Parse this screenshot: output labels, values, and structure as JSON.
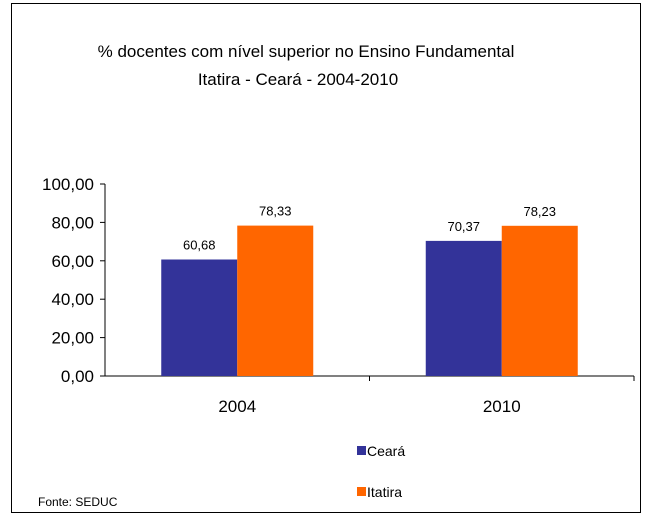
{
  "chart_data": {
    "type": "bar",
    "title": "% docentes com nível  superior no Ensino Fundamental",
    "subtitle": "Itatira -  Ceará - 2004-2010",
    "categories": [
      "2004",
      "2010"
    ],
    "series": [
      {
        "name": "Ceará",
        "values": [
          60.68,
          70.37
        ],
        "labels": [
          "60,68",
          "70,37"
        ],
        "color": "#333399"
      },
      {
        "name": "Itatira",
        "values": [
          78.33,
          78.23
        ],
        "labels": [
          "78,33",
          "78,23"
        ],
        "color": "#FF6600"
      }
    ],
    "ylim": [
      0,
      100
    ],
    "yticks": [
      0,
      20,
      40,
      60,
      80,
      100
    ],
    "ytick_labels": [
      "0,00",
      "20,00",
      "40,00",
      "60,00",
      "80,00",
      "100,00"
    ],
    "xlabel": "",
    "ylabel": "",
    "grid": false,
    "legend_position": "bottom"
  },
  "source_note": "Fonte: SEDUC"
}
